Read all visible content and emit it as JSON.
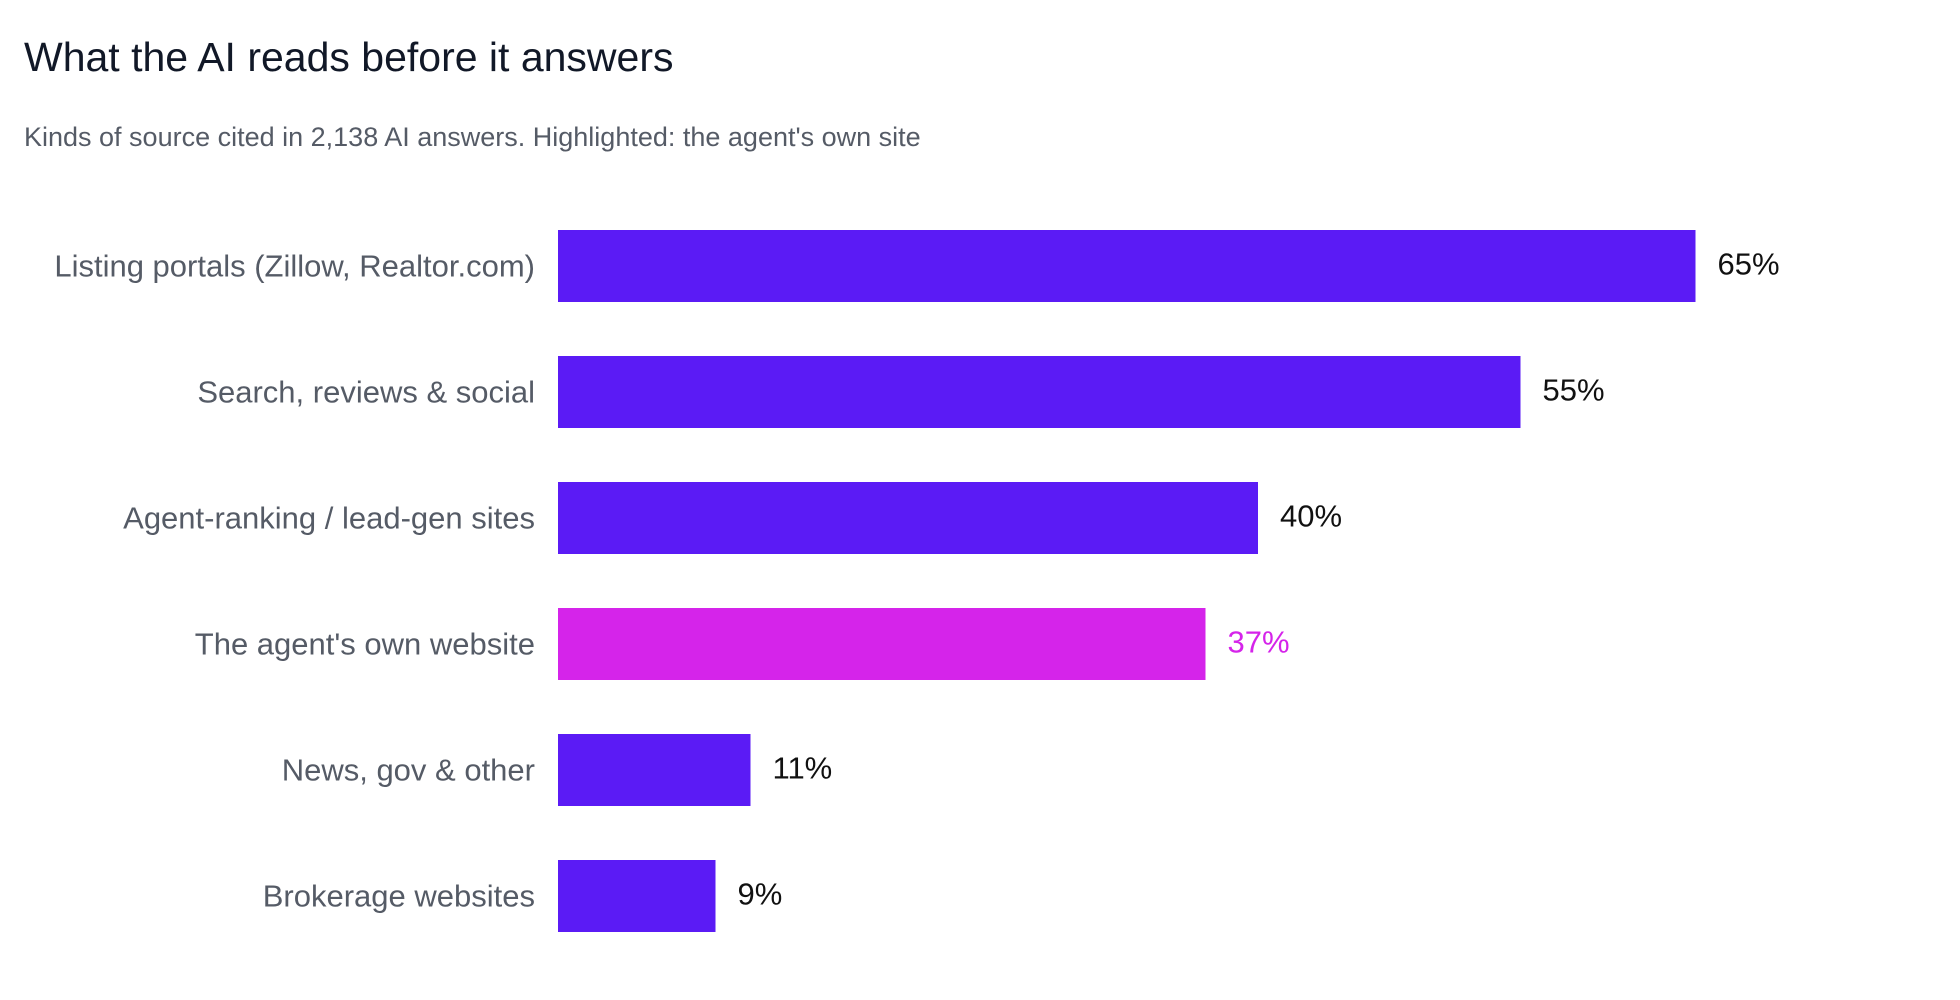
{
  "chart_data": {
    "type": "bar",
    "orientation": "horizontal",
    "title": "What the AI reads before it answers",
    "subtitle": "Kinds of source cited in 2,138 AI answers. Highlighted: the agent's own site",
    "categories": [
      "Listing portals (Zillow, Realtor.com)",
      "Search, reviews & social",
      "Agent-ranking / lead-gen sites",
      "The agent's own website",
      "News, gov & other",
      "Brokerage websites"
    ],
    "values": [
      65,
      55,
      40,
      37,
      11,
      9
    ],
    "value_labels": [
      "65%",
      "55%",
      "40%",
      "37%",
      "11%",
      "9%"
    ],
    "highlight_index": 3,
    "xlim": [
      0,
      100
    ],
    "grid": false,
    "legend": "none",
    "colors": {
      "bar": "#5b1bf5",
      "highlight": "#d524ea",
      "value_text": "#111111",
      "highlight_text": "#d524ea",
      "category_text": "#555b66"
    }
  }
}
